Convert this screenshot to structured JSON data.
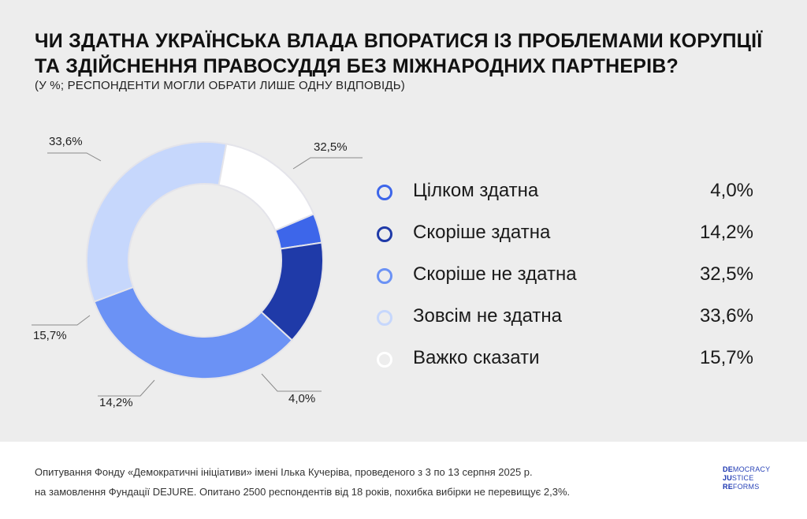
{
  "header": {
    "title_line1": "ЧИ ЗДАТНА УКРАЇНСЬКА ВЛАДА ВПОРАТИСЯ ІЗ ПРОБЛЕМАМИ КОРУПЦІЇ",
    "title_line2": "ТА ЗДІЙСНЕННЯ ПРАВОСУДДЯ БЕЗ МІЖНАРОДНИХ ПАРТНЕРІВ?",
    "subtitle": "(У %; РЕСПОНДЕНТИ МОГЛИ ОБРАТИ ЛИШЕ ОДНУ ВІДПОВІДЬ)"
  },
  "chart_data": {
    "type": "pie",
    "donut": true,
    "title": "ЧИ ЗДАТНА УКРАЇНСЬКА ВЛАДА ВПОРАТИСЯ ІЗ ПРОБЛЕМАМИ КОРУПЦІЇ ТА ЗДІЙСНЕННЯ ПРАВОСУДДЯ БЕЗ МІЖНАРОДНИХ ПАРТНЕРІВ?",
    "unit": "%",
    "legend_position": "right",
    "slices": [
      {
        "label": "Цілком здатна",
        "value": 4.0,
        "display": "4,0%",
        "color": "#3d66ea"
      },
      {
        "label": "Скоріше здатна",
        "value": 14.2,
        "display": "14,2%",
        "color": "#1f3aa8"
      },
      {
        "label": "Скоріше не здатна",
        "value": 32.5,
        "display": "32,5%",
        "color": "#6b92f5"
      },
      {
        "label": "Зовсім не здатна",
        "value": 33.6,
        "display": "33,6%",
        "color": "#c6d7fc"
      },
      {
        "label": "Важко сказати",
        "value": 15.7,
        "display": "15,7%",
        "color": "#ffffff"
      }
    ]
  },
  "legend": {
    "items": [
      {
        "label": "Цілком здатна",
        "value": "4,0%",
        "color": "#3d66ea"
      },
      {
        "label": "Скоріше здатна",
        "value": "14,2%",
        "color": "#1f3aa8"
      },
      {
        "label": "Скоріше не здатна",
        "value": "32,5%",
        "color": "#6b92f5"
      },
      {
        "label": "Зовсім не здатна",
        "value": "33,6%",
        "color": "#c6d7fc"
      },
      {
        "label": "Важко сказати",
        "value": "15,7%",
        "color": "#ffffff"
      }
    ]
  },
  "footer": {
    "note_line1": "Опитування Фонду «Демократичні ініціативи» імені Ілька Кучеріва, проведеного з 3 по 13 серпня 2025 р.",
    "note_line2": "на замовлення Фундації DEJURE. Опитано 2500 респондентів від 18 років, похибка вибірки не перевищує 2,3%.",
    "logo": [
      {
        "bold": "DE",
        "rest": "MOCRACY"
      },
      {
        "bold": "JU",
        "rest": "STICE"
      },
      {
        "bold": "RE",
        "rest": "FORMS"
      }
    ]
  }
}
